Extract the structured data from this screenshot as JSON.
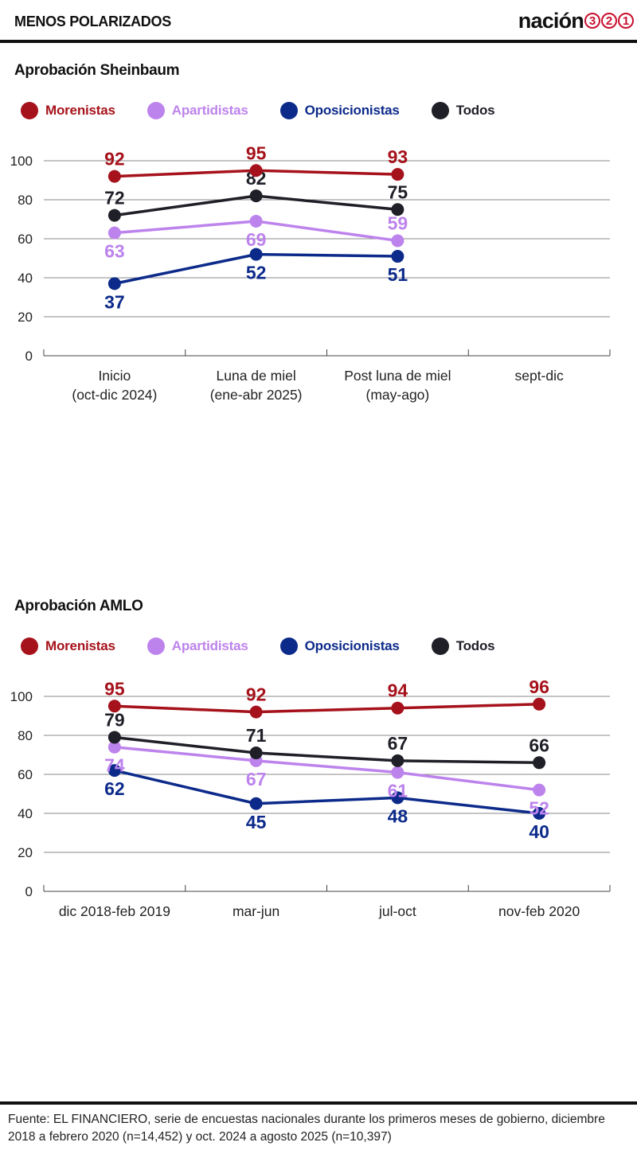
{
  "header": {
    "kicker": "MENOS POLARIZADOS",
    "logo_word": "nación",
    "logo_digits": [
      "3",
      "2",
      "1"
    ]
  },
  "colors": {
    "Morenistas": "#a6121b",
    "Apartidistas": "#bd83ec",
    "Oposicionistas": "#0c2a8a",
    "Todos": "#1f1f28",
    "accent": "#c8102e"
  },
  "chart_data": [
    {
      "type": "line",
      "title": "Aprobación Sheinbaum",
      "categories": [
        "Inicio\n(oct-dic 2024)",
        "Luna de miel\n(ene-abr 2025)",
        "Post luna de miel\n(may-ago)",
        "sept-dic"
      ],
      "ylim": [
        0,
        100
      ],
      "yticks": [
        0,
        20,
        40,
        60,
        80,
        100
      ],
      "grid": true,
      "legend_position": "top",
      "series": [
        {
          "name": "Morenistas",
          "values": [
            92,
            95,
            93,
            null
          ],
          "label_pos": [
            "above",
            "above",
            "above"
          ]
        },
        {
          "name": "Apartidistas",
          "values": [
            63,
            69,
            59,
            null
          ],
          "label_pos": [
            "below",
            "below",
            "above"
          ]
        },
        {
          "name": "Oposicionistas",
          "values": [
            37,
            52,
            51,
            null
          ],
          "label_pos": [
            "below",
            "below",
            "below"
          ]
        },
        {
          "name": "Todos",
          "values": [
            72,
            82,
            75,
            null
          ],
          "label_pos": [
            "above",
            "above",
            "above"
          ]
        }
      ]
    },
    {
      "type": "line",
      "title": "Aprobación AMLO",
      "categories": [
        "dic 2018-feb 2019",
        "mar-jun",
        "jul-oct",
        "nov-feb 2020"
      ],
      "ylim": [
        0,
        100
      ],
      "yticks": [
        0,
        20,
        40,
        60,
        80,
        100
      ],
      "grid": true,
      "legend_position": "top",
      "series": [
        {
          "name": "Morenistas",
          "values": [
            95,
            92,
            94,
            96
          ],
          "label_pos": [
            "above",
            "above",
            "above",
            "above"
          ]
        },
        {
          "name": "Apartidistas",
          "values": [
            74,
            67,
            61,
            52
          ],
          "label_pos": [
            "below",
            "below",
            "below",
            "below"
          ]
        },
        {
          "name": "Oposicionistas",
          "values": [
            62,
            45,
            48,
            40
          ],
          "label_pos": [
            "below",
            "below",
            "below",
            "below"
          ]
        },
        {
          "name": "Todos",
          "values": [
            79,
            71,
            67,
            66
          ],
          "label_pos": [
            "above",
            "above",
            "above",
            "above"
          ]
        }
      ]
    }
  ],
  "footer": {
    "source": "Fuente: EL FINANCIERO, serie de encuestas nacionales durante los primeros meses de gobierno, diciembre 2018 a febrero 2020 (n=14,452) y oct. 2024 a agosto 2025 (n=10,397)"
  }
}
